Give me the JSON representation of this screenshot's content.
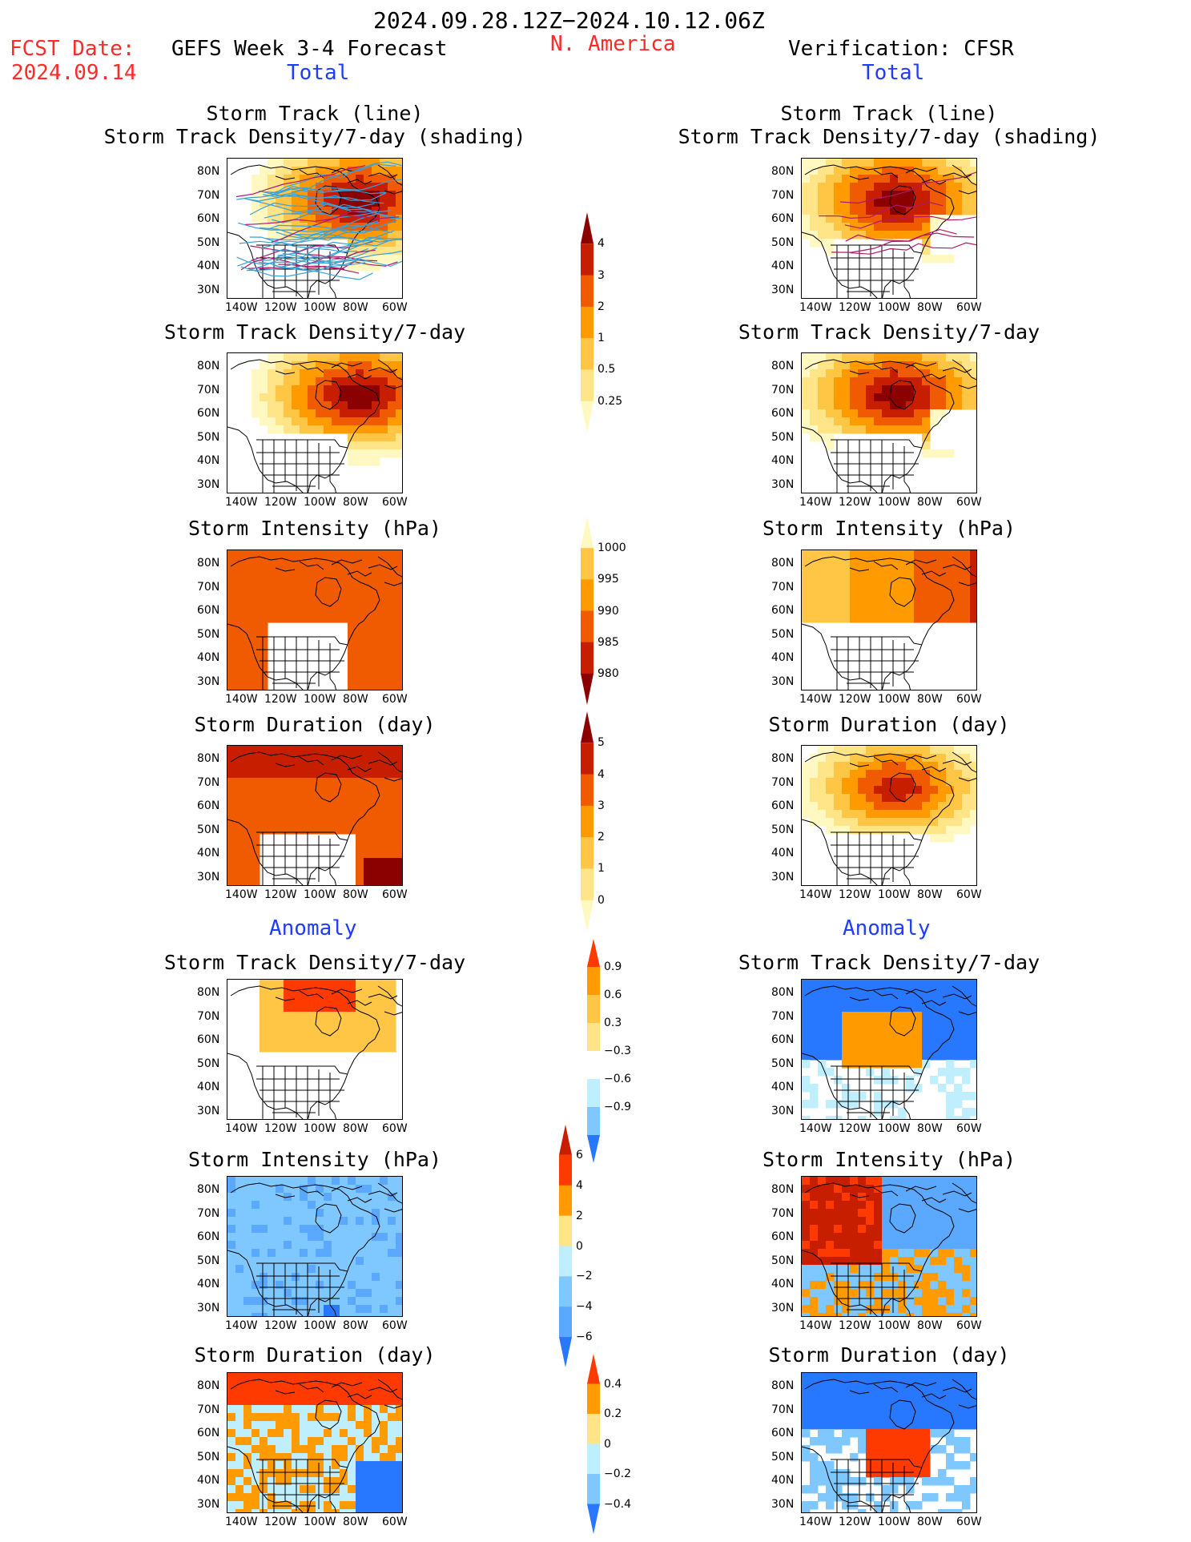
{
  "header": {
    "period": "2024.09.28.12Z−2024.10.12.06Z",
    "fcst_label": "FCST Date:",
    "fcst_date": "2024.09.14",
    "model": "GEFS Week 3-4 Forecast",
    "region": "N. America",
    "verification": "Verification: CFSR",
    "section_total": "Total",
    "section_anomaly": "Anomaly"
  },
  "axes": {
    "lat_labels": [
      "80N",
      "70N",
      "60N",
      "50N",
      "40N",
      "30N"
    ],
    "lon_labels": [
      "140W",
      "120W",
      "100W",
      "80W",
      "60W"
    ]
  },
  "rows": [
    {
      "title_line1": "Storm Track (line)",
      "title_line2": "Storm Track Density/7-day (shading)",
      "kind": "track_lines",
      "scale": "density"
    },
    {
      "title_line1": "Storm Track Density/7-day",
      "title_line2": "",
      "kind": "field",
      "scale": "density"
    },
    {
      "title_line1": "Storm Intensity (hPa)",
      "title_line2": "",
      "kind": "field",
      "scale": "intensity"
    },
    {
      "title_line1": "Storm Duration (day)",
      "title_line2": "",
      "kind": "field",
      "scale": "duration"
    },
    {
      "title_line1": "Storm Track Density/7-day",
      "title_line2": "",
      "kind": "anomaly",
      "scale": "anom_density"
    },
    {
      "title_line1": "Storm Intensity (hPa)",
      "title_line2": "",
      "kind": "anomaly",
      "scale": "anom_intensity"
    },
    {
      "title_line1": "Storm Duration (day)",
      "title_line2": "",
      "kind": "anomaly",
      "scale": "anom_duration"
    }
  ],
  "colorbars": {
    "density": {
      "labels": [
        "4",
        "3",
        "2",
        "1",
        "0.5",
        "0.25"
      ],
      "colors": [
        "#8b0000",
        "#c81e00",
        "#f05a00",
        "#ff9a00",
        "#ffc645",
        "#ffe488",
        "#fff8c0"
      ]
    },
    "intensity": {
      "labels": [
        "1000",
        "995",
        "990",
        "985",
        "980"
      ],
      "colors": [
        "#fff8c0",
        "#ffc645",
        "#ff9a00",
        "#f05a00",
        "#c81e00",
        "#8b0000"
      ]
    },
    "duration": {
      "labels": [
        "5",
        "4",
        "3",
        "2",
        "1",
        "0"
      ],
      "colors": [
        "#8b0000",
        "#c81e00",
        "#f05a00",
        "#ff9a00",
        "#ffc645",
        "#ffe488",
        "#fff8c0"
      ]
    },
    "anom_density": {
      "labels": [
        "0.9",
        "0.6",
        "0.3",
        "−0.3",
        "−0.6",
        "−0.9"
      ],
      "colors": [
        "#ff3a00",
        "#ff9a00",
        "#ffc645",
        "#ffe488",
        "#ffffff",
        "#bfefff",
        "#7fc8ff",
        "#2878ff"
      ]
    },
    "anom_intensity": {
      "labels": [
        "6",
        "4",
        "2",
        "0",
        "−2",
        "−4",
        "−6"
      ],
      "colors": [
        "#c81e00",
        "#ff3a00",
        "#ff9a00",
        "#ffe488",
        "#bfefff",
        "#7fc8ff",
        "#5aa8ff",
        "#2878ff"
      ]
    },
    "anom_duration": {
      "labels": [
        "0.4",
        "0.2",
        "0",
        "−0.2",
        "−0.4"
      ],
      "colors": [
        "#ff3a00",
        "#ff9a00",
        "#ffe488",
        "#bfefff",
        "#7fc8ff",
        "#2878ff"
      ]
    }
  },
  "palette": {
    "land_line": "#000000",
    "track_line": "#3aa0d8",
    "track_line_dark": "#b0186a",
    "white": "#ffffff"
  }
}
